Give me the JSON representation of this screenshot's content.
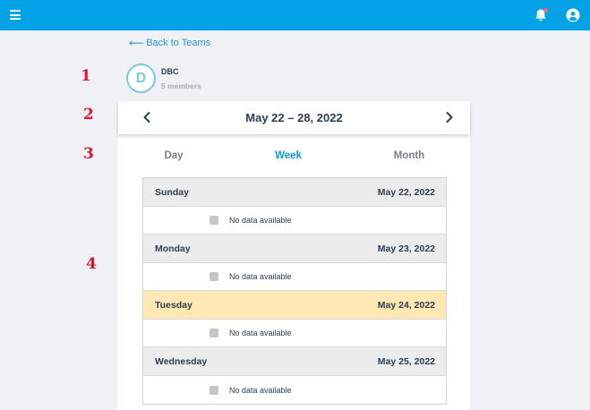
{
  "topbar": {
    "accent": "#03a2e6",
    "menu_icon": "hamburger-menu-icon",
    "bell_icon": "bell-icon",
    "user_icon": "user-circle-icon"
  },
  "back_link": {
    "label": "Back to Teams",
    "arrow": "⟵"
  },
  "team": {
    "initial": "D",
    "name": "DBC",
    "members": "5 members"
  },
  "annotations": [
    "1",
    "2",
    "3",
    "4"
  ],
  "week_nav": {
    "title": "May 22 – 28, 2022",
    "prev_icon": "chevron-left-icon",
    "next_icon": "chevron-right-icon"
  },
  "tabs": [
    {
      "label": "Day",
      "active": false
    },
    {
      "label": "Week",
      "active": true
    },
    {
      "label": "Month",
      "active": false
    }
  ],
  "days": [
    {
      "name": "Sunday",
      "date": "May 22, 2022",
      "highlighted": false,
      "status": "No data available"
    },
    {
      "name": "Monday",
      "date": "May 23, 2022",
      "highlighted": false,
      "status": "No data available"
    },
    {
      "name": "Tuesday",
      "date": "May 24, 2022",
      "highlighted": true,
      "status": "No data available"
    },
    {
      "name": "Wednesday",
      "date": "May 25, 2022",
      "highlighted": false,
      "status": "No data available"
    }
  ]
}
